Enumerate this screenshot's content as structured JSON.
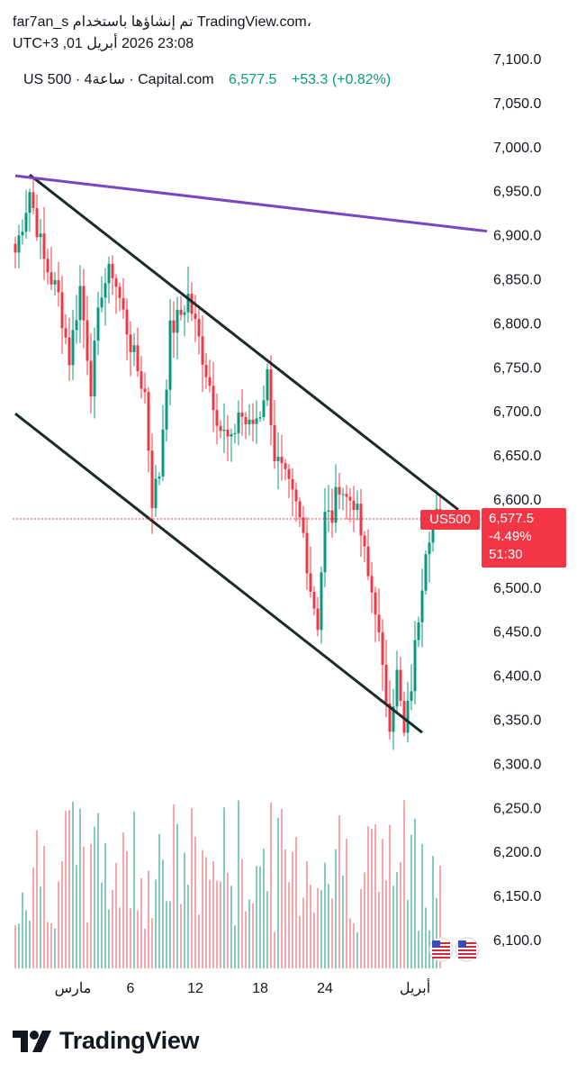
{
  "header": {
    "line1": "far7an_s تم إنشاؤها باستخدام TradingView.com،",
    "line2": "23:08 2026 أبريل 01, UTC+3"
  },
  "legend": {
    "symbol": "US 500 · 4ساعة · Capital.com",
    "price": "6,577.5",
    "change": "+53.3 (+0.82%)"
  },
  "price_tag": {
    "symbol": "US500",
    "price": "6,577.5",
    "change_pct": "-4.49%",
    "countdown": "51:30"
  },
  "brand": {
    "name": "TradingView"
  },
  "colors": {
    "up": "#089981",
    "down": "#f23645",
    "up_volume": "#86c9bd",
    "down_volume": "#f7a6ab",
    "channel_line": "#1b2b27",
    "resistance_line": "#7b45c2",
    "price_line": "#f23645"
  },
  "chart_data": {
    "type": "candlestick",
    "y_axis": {
      "position": "right",
      "min": 6065,
      "max": 7105,
      "ticks": [
        7100,
        7050,
        7000,
        6950,
        6900,
        6850,
        6800,
        6750,
        6700,
        6650,
        6600,
        6550,
        6500,
        6450,
        6400,
        6350,
        6300,
        6250,
        6200,
        6150,
        6100
      ],
      "tick_labels": [
        "7,100.0",
        "7,050.0",
        "7,000.0",
        "6,950.0",
        "6,900.0",
        "6,850.0",
        "6,800.0",
        "6,750.0",
        "6,700.0",
        "6,650.0",
        "6,600.0",
        "6,550.0",
        "6,500.0",
        "6,450.0",
        "6,400.0",
        "6,350.0",
        "6,300.0",
        "6,250.0",
        "6,200.0",
        "6,150.0",
        "6,100.0"
      ]
    },
    "x_axis": {
      "bar_count": 120,
      "ticks": [
        {
          "bar": 16,
          "label": "مارس"
        },
        {
          "bar": 32,
          "label": "6"
        },
        {
          "bar": 50,
          "label": "12"
        },
        {
          "bar": 68,
          "label": "18"
        },
        {
          "bar": 86,
          "label": "24"
        },
        {
          "bar": 111,
          "label": "أبريل"
        }
      ]
    },
    "grid": false,
    "price_anchors": [
      [
        0,
        6880
      ],
      [
        4,
        6950
      ],
      [
        8,
        6870
      ],
      [
        12,
        6830
      ],
      [
        15,
        6760
      ],
      [
        18,
        6840
      ],
      [
        21,
        6730
      ],
      [
        24,
        6840
      ],
      [
        27,
        6860
      ],
      [
        30,
        6810
      ],
      [
        33,
        6760
      ],
      [
        36,
        6720
      ],
      [
        38,
        6600
      ],
      [
        40,
        6630
      ],
      [
        43,
        6790
      ],
      [
        46,
        6810
      ],
      [
        48,
        6830
      ],
      [
        51,
        6780
      ],
      [
        54,
        6730
      ],
      [
        57,
        6680
      ],
      [
        60,
        6660
      ],
      [
        62,
        6700
      ],
      [
        65,
        6680
      ],
      [
        68,
        6700
      ],
      [
        70,
        6740
      ],
      [
        72,
        6650
      ],
      [
        75,
        6620
      ],
      [
        78,
        6590
      ],
      [
        80,
        6560
      ],
      [
        82,
        6500
      ],
      [
        84,
        6460
      ],
      [
        86,
        6580
      ],
      [
        88,
        6580
      ],
      [
        90,
        6620
      ],
      [
        92,
        6600
      ],
      [
        94,
        6600
      ],
      [
        96,
        6560
      ],
      [
        98,
        6510
      ],
      [
        100,
        6480
      ],
      [
        102,
        6400
      ],
      [
        104,
        6350
      ],
      [
        106,
        6400
      ],
      [
        108,
        6330
      ],
      [
        110,
        6390
      ],
      [
        112,
        6470
      ],
      [
        114,
        6550
      ],
      [
        116,
        6580
      ],
      [
        118,
        6578
      ]
    ],
    "trend_lines": [
      {
        "name": "upper-channel",
        "x1": 4,
        "y1": 6968,
        "x2": 123,
        "y2": 6588
      },
      {
        "name": "lower-channel",
        "x1": 0,
        "y1": 6697,
        "x2": 113,
        "y2": 6335
      },
      {
        "name": "resistance",
        "x1": 0,
        "y1": 6967,
        "x2": 131,
        "y2": 6904
      }
    ],
    "last_price": 6577.5
  }
}
